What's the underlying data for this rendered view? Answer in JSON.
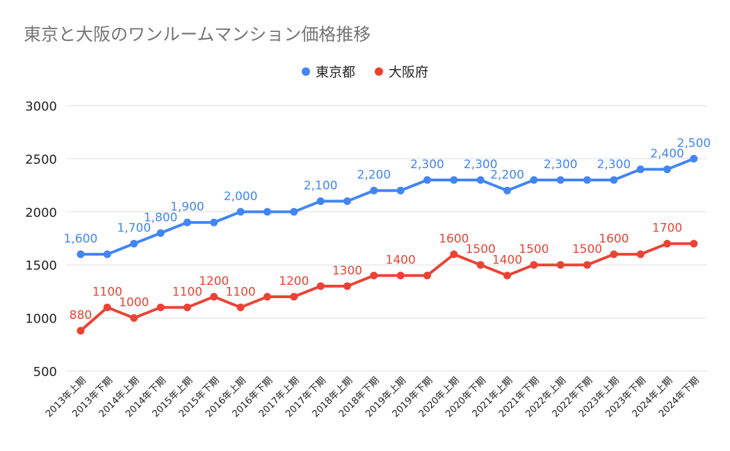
{
  "title": "東京と大阪のワンルームマンション価格推移",
  "colors": {
    "tokyo": "#4285f4",
    "osaka": "#ea4335",
    "grid": "#dddddd",
    "axis_text": "#222222"
  },
  "chart_data": {
    "type": "line",
    "title": "東京と大阪のワンルームマンション価格推移",
    "xlabel": "",
    "ylabel": "",
    "ylim": [
      500,
      3000
    ],
    "yticks": [
      "3000",
      "2500",
      "2000",
      "1500",
      "1000",
      "500"
    ],
    "grid": true,
    "legend_position": "top",
    "categories": [
      "2013年上期",
      "2013年下期",
      "2014年上期",
      "2014年下期",
      "2015年上期",
      "2015年下期",
      "2016年上期",
      "2016年下期",
      "2017年上期",
      "2017年下期",
      "2018年上期",
      "2018年下期",
      "2019年上期",
      "2019年下期",
      "2020年上期",
      "2020年下期",
      "2021年上期",
      "2021年下期",
      "2022年上期",
      "2022年下期",
      "2023年上期",
      "2023年下期",
      "2024年上期",
      "2024年下期"
    ],
    "series": [
      {
        "name": "東京都",
        "values": [
          1600,
          1600,
          1700,
          1800,
          1900,
          1900,
          2000,
          2000,
          2000,
          2100,
          2100,
          2200,
          2200,
          2300,
          2300,
          2300,
          2200,
          2300,
          2300,
          2300,
          2300,
          2400,
          2400,
          2500
        ],
        "labels": [
          "1,600",
          "",
          "1,700",
          "1,800",
          "1,900",
          "",
          "2,000",
          "",
          "",
          "2,100",
          "",
          "2,200",
          "",
          "2,300",
          "",
          "2,300",
          "2,200",
          "",
          "2,300",
          "",
          "2,300",
          "",
          "2,400",
          "2,500"
        ]
      },
      {
        "name": "大阪府",
        "values": [
          880,
          1100,
          1000,
          1100,
          1100,
          1200,
          1100,
          1200,
          1200,
          1300,
          1300,
          1400,
          1400,
          1400,
          1600,
          1500,
          1400,
          1500,
          1500,
          1500,
          1600,
          1600,
          1700,
          1700
        ],
        "labels": [
          "880",
          "1100",
          "1000",
          "",
          "1100",
          "1200",
          "1100",
          "",
          "1200",
          "",
          "1300",
          "",
          "1400",
          "",
          "1600",
          "1500",
          "1400",
          "1500",
          "",
          "1500",
          "1600",
          "",
          "1700",
          ""
        ]
      }
    ]
  }
}
